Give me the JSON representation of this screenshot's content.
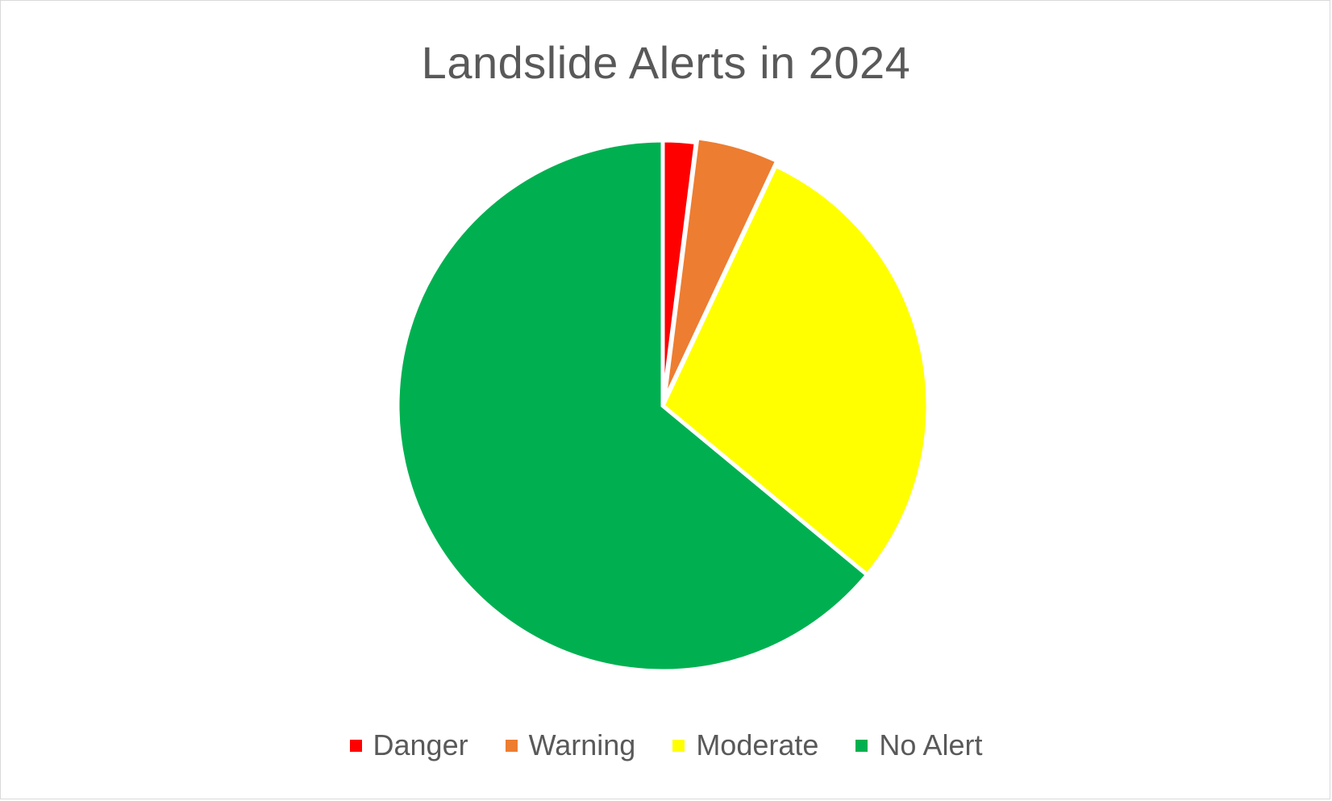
{
  "chart_data": {
    "type": "pie",
    "title": "Landslide Alerts in 2024",
    "categories": [
      "Danger",
      "Warning",
      "Moderate",
      "No Alert"
    ],
    "values": [
      2,
      5,
      29,
      64
    ],
    "colors": [
      "#ff0000",
      "#ed7d31",
      "#ffff00",
      "#00b050"
    ],
    "start_angle_deg": 0,
    "direction": "clockwise",
    "legend_position": "bottom",
    "exploded_slice": "Warning"
  }
}
